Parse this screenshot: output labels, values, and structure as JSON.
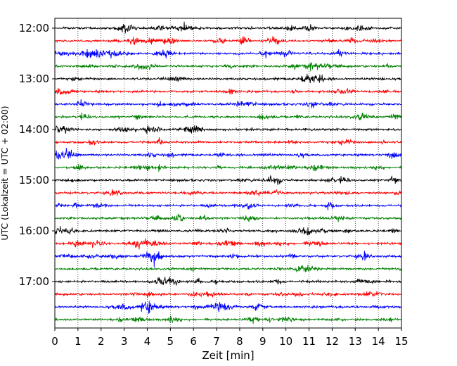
{
  "chart_data": {
    "type": "line",
    "title": "",
    "xlabel": "Zeit  [min]",
    "ylabel": "UTC (Lokalzeit = UTC + 02:00)",
    "xlim": [
      0,
      15
    ],
    "x_ticks": [
      0,
      1,
      2,
      3,
      4,
      5,
      6,
      7,
      8,
      9,
      10,
      11,
      12,
      13,
      14,
      15
    ],
    "x_tick_labels": [
      "0",
      "1",
      "2",
      "3",
      "4",
      "5",
      "6",
      "7",
      "8",
      "9",
      "10",
      "11",
      "12",
      "13",
      "14",
      "15"
    ],
    "y_ticks": [
      "12:00",
      "13:00",
      "14:00",
      "15:00",
      "16:00",
      "17:00"
    ],
    "grid": "vertical dotted",
    "trace_interval_minutes": 15,
    "trace_colors": [
      "#000000",
      "#ff0000",
      "#0000ff",
      "#008000"
    ],
    "series": [
      {
        "start": "12:00"
      },
      {
        "start": "12:15"
      },
      {
        "start": "12:30"
      },
      {
        "start": "12:45"
      },
      {
        "start": "13:00"
      },
      {
        "start": "13:15"
      },
      {
        "start": "13:30"
      },
      {
        "start": "13:45"
      },
      {
        "start": "14:00"
      },
      {
        "start": "14:15"
      },
      {
        "start": "14:30"
      },
      {
        "start": "14:45"
      },
      {
        "start": "15:00"
      },
      {
        "start": "15:15"
      },
      {
        "start": "15:30"
      },
      {
        "start": "15:45"
      },
      {
        "start": "16:00"
      },
      {
        "start": "16:15"
      },
      {
        "start": "16:30"
      },
      {
        "start": "16:45"
      },
      {
        "start": "17:00"
      },
      {
        "start": "17:15"
      },
      {
        "start": "17:30"
      },
      {
        "start": "17:45"
      }
    ]
  }
}
